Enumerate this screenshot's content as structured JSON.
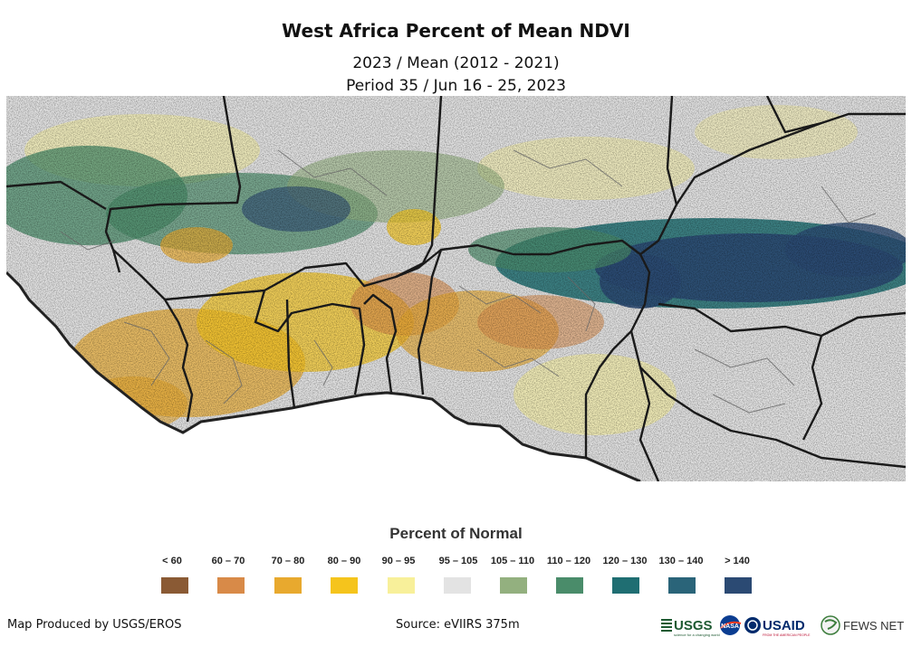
{
  "title": "West Africa Percent of Mean NDVI",
  "subtitle_1": "2023 / Mean (2012 - 2021)",
  "subtitle_2": "Period 35 / Jun 16 - 25, 2023",
  "legend": {
    "title": "Percent of Normal",
    "items": [
      {
        "label": "< 60",
        "color": "#8a5a34"
      },
      {
        "label": "60 – 70",
        "color": "#d88a48"
      },
      {
        "label": "70 – 80",
        "color": "#e8a92e"
      },
      {
        "label": "80 – 90",
        "color": "#f5c41c"
      },
      {
        "label": "90 – 95",
        "color": "#f8f09a"
      },
      {
        "label": "95 – 105",
        "color": "#e3e3e3"
      },
      {
        "label": "105 – 110",
        "color": "#93b07f"
      },
      {
        "label": "110 – 120",
        "color": "#4a8c6a"
      },
      {
        "label": "120 – 130",
        "color": "#1f6e72"
      },
      {
        "label": "130 – 140",
        "color": "#2a6479"
      },
      {
        "label": "> 140",
        "color": "#2b4a73"
      }
    ]
  },
  "footer": {
    "credit": "Map Produced by USGS/EROS",
    "source": "Source: eVIIRS 375m"
  },
  "logos": {
    "usgs": "USGS",
    "usgs_tagline": "science for a changing world",
    "nasa": "NASA",
    "usaid": "USAID",
    "usaid_tagline": "FROM THE AMERICAN PEOPLE",
    "fewsnet": "FEWS NET"
  }
}
